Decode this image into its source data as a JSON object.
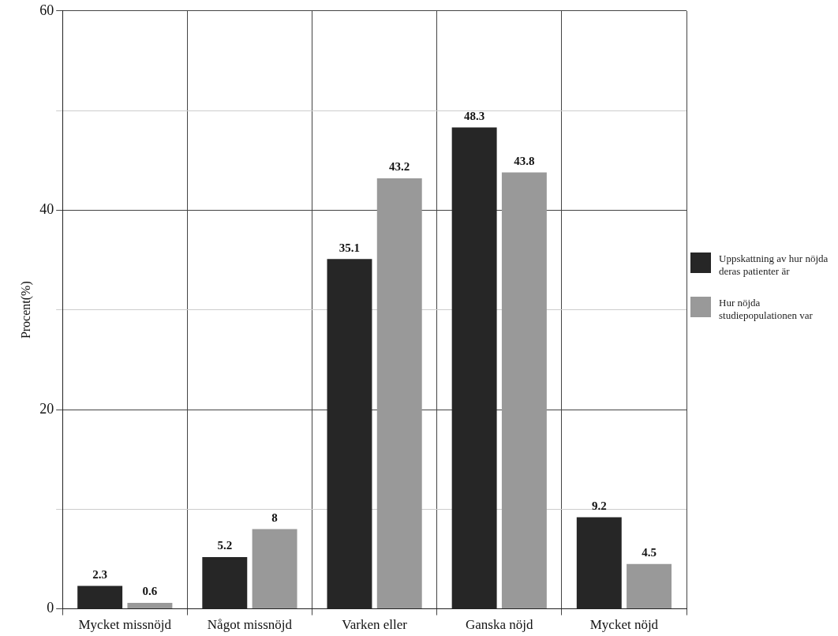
{
  "chart_data": {
    "type": "bar",
    "ylabel": "Procent(%)",
    "categories": [
      "Mycket missnöjd",
      "Något missnöjd",
      "Varken eller",
      "Ganska nöjd",
      "Mycket nöjd"
    ],
    "series": [
      {
        "name": "Uppskattning av hur nöjda deras patienter är",
        "color": "#262626",
        "values": [
          2.3,
          5.2,
          35.1,
          48.3,
          9.2
        ]
      },
      {
        "name": "Hur nöjda studiepopulationen var",
        "color": "#999999",
        "values": [
          0.6,
          8,
          43.2,
          43.8,
          4.5
        ]
      }
    ],
    "ylim": [
      0,
      60
    ],
    "yticks": [
      0,
      {
        "value": 10,
        "label": null
      },
      20,
      {
        "value": 30,
        "label": null
      },
      40,
      {
        "value": 50,
        "label": null
      },
      60
    ],
    "grid": true,
    "legend": "right",
    "data_labels": true
  }
}
